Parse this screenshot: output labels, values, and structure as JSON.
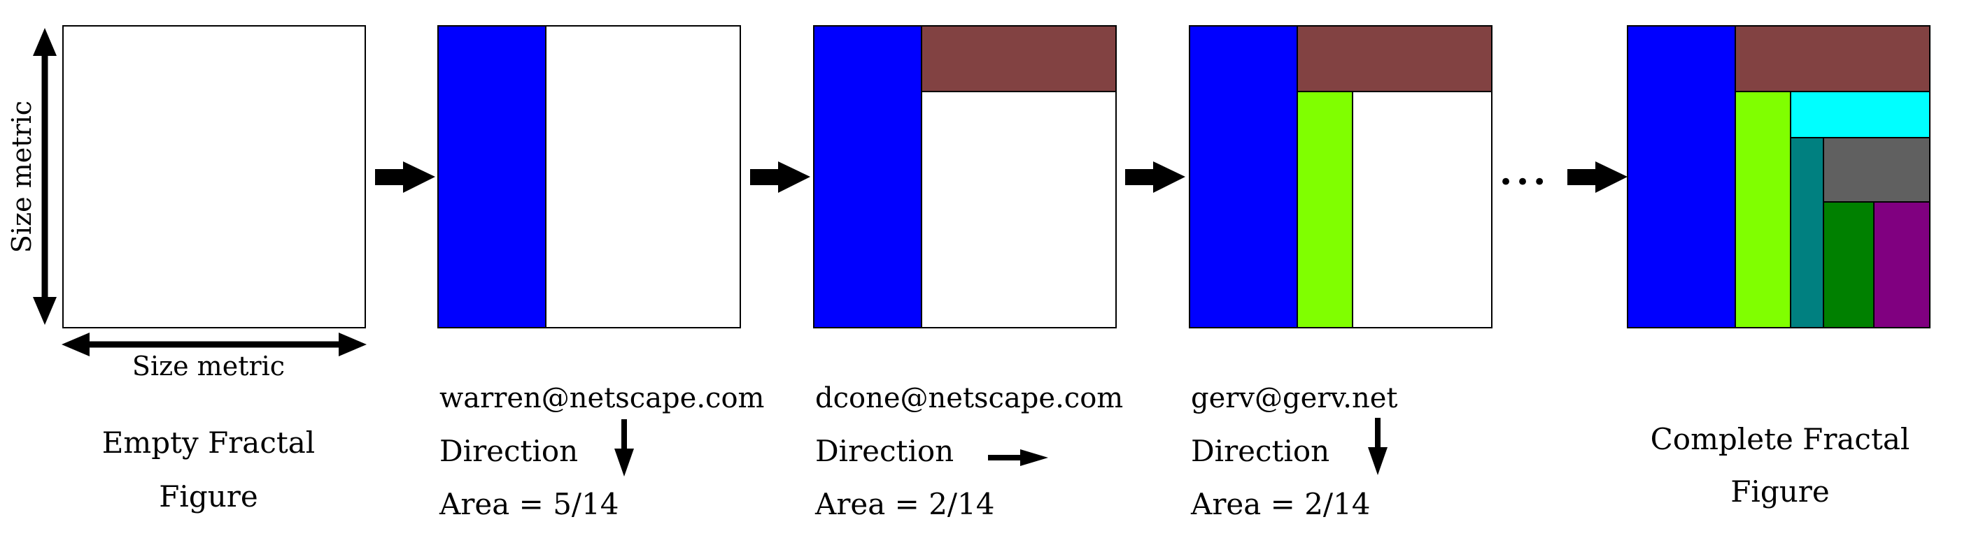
{
  "colors": {
    "blue": "#0000ff",
    "brown": "#824242",
    "lime": "#80ff00",
    "cyan": "#00ffff",
    "teal": "#008080",
    "gray": "#606060",
    "green": "#008000",
    "purple": "#800080",
    "outline": "#000000"
  },
  "axes": {
    "vertical_label": "Size metric",
    "horizontal_label": "Size metric"
  },
  "steps": [
    {
      "caption_line1": "Empty Fractal",
      "caption_line2": "Figure"
    },
    {
      "email": "warren@netscape.com",
      "direction_label": "Direction",
      "direction": "down",
      "area": "Area = 5/14"
    },
    {
      "email": "dcone@netscape.com",
      "direction_label": "Direction",
      "direction": "right",
      "area": "Area = 2/14"
    },
    {
      "email": "gerv@gerv.net",
      "direction_label": "Direction",
      "direction": "down",
      "area": "Area = 2/14"
    },
    {
      "caption_line1": "Complete Fractal",
      "caption_line2": "Figure"
    }
  ],
  "ellipsis": "•••"
}
